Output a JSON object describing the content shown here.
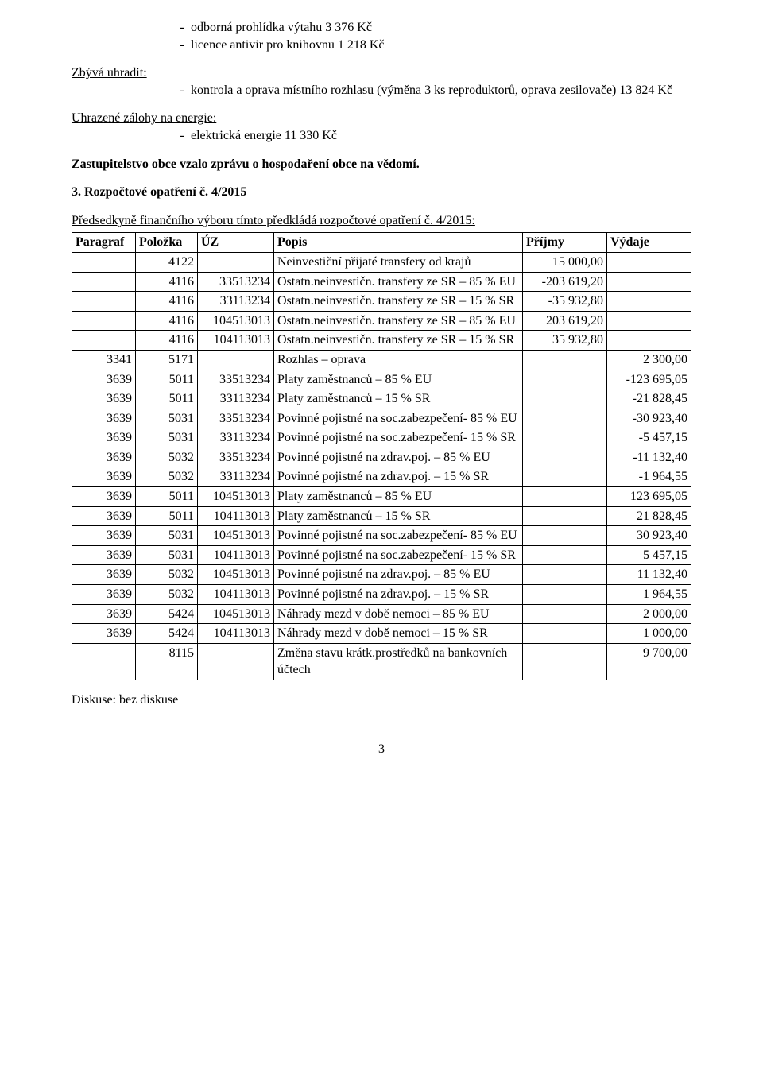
{
  "intro_bullets": [
    "odborná prohlídka výtahu 3 376 Kč",
    "licence antivir pro knihovnu 1 218 Kč"
  ],
  "zbyva_label": "Zbývá uhradit:",
  "zbyva_bullets": [
    "kontrola a oprava místního rozhlasu (výměna 3 ks reproduktorů, oprava zesilovače) 13 824 Kč"
  ],
  "uhrazene_label": "Uhrazené zálohy na energie:",
  "uhrazene_bullets": [
    "elektrická energie 11 330 Kč"
  ],
  "zastup_line": "Zastupitelstvo obce vzalo zprávu o hospodaření obce na vědomí.",
  "section3_title": "3. Rozpočtové opatření č. 4/2015",
  "pred_line": "Předsedkyně finančního výboru tímto předkládá rozpočtové opatření č. 4/2015:",
  "headers": {
    "c1": "Paragraf",
    "c2": "Položka",
    "c3": "ÚZ",
    "c4": "Popis",
    "c5": "Příjmy",
    "c6": "Výdaje"
  },
  "rows": [
    {
      "c1": "",
      "c2": "4122",
      "c3": "",
      "c4": "Neinvestiční přijaté transfery od krajů",
      "c5": "15 000,00",
      "c6": ""
    },
    {
      "c1": "",
      "c2": "4116",
      "c3": "33513234",
      "c4": "Ostatn.neinvestičn. transfery ze SR – 85 % EU",
      "c5": "-203 619,20",
      "c6": ""
    },
    {
      "c1": "",
      "c2": "4116",
      "c3": "33113234",
      "c4": "Ostatn.neinvestičn. transfery ze SR – 15 % SR",
      "c5": "-35 932,80",
      "c6": ""
    },
    {
      "c1": "",
      "c2": "4116",
      "c3": "104513013",
      "c4": "Ostatn.neinvestičn. transfery ze SR – 85 % EU",
      "c5": "203 619,20",
      "c6": ""
    },
    {
      "c1": "",
      "c2": "4116",
      "c3": "104113013",
      "c4": "Ostatn.neinvestičn. transfery ze SR – 15 % SR",
      "c5": "35 932,80",
      "c6": ""
    },
    {
      "c1": "3341",
      "c2": "5171",
      "c3": "",
      "c4": "Rozhlas – oprava",
      "c5": "",
      "c6": "2 300,00"
    },
    {
      "c1": "3639",
      "c2": "5011",
      "c3": "33513234",
      "c4": "Platy zaměstnanců – 85 % EU",
      "c5": "",
      "c6": "-123 695,05"
    },
    {
      "c1": "3639",
      "c2": "5011",
      "c3": "33113234",
      "c4": "Platy zaměstnanců – 15 % SR",
      "c5": "",
      "c6": "-21 828,45"
    },
    {
      "c1": "3639",
      "c2": "5031",
      "c3": "33513234",
      "c4": "Povinné pojistné na soc.zabezpečení- 85 % EU",
      "c5": "",
      "c6": "-30 923,40"
    },
    {
      "c1": "3639",
      "c2": "5031",
      "c3": "33113234",
      "c4": "Povinné pojistné na soc.zabezpečení- 15 % SR",
      "c5": "",
      "c6": "-5 457,15"
    },
    {
      "c1": "3639",
      "c2": "5032",
      "c3": "33513234",
      "c4": "Povinné pojistné na zdrav.poj. – 85 % EU",
      "c5": "",
      "c6": "-11 132,40"
    },
    {
      "c1": "3639",
      "c2": "5032",
      "c3": "33113234",
      "c4": "Povinné pojistné na zdrav.poj. – 15 % SR",
      "c5": "",
      "c6": "-1 964,55"
    },
    {
      "c1": "3639",
      "c2": "5011",
      "c3": "104513013",
      "c4": "Platy zaměstnanců – 85 % EU",
      "c5": "",
      "c6": "123 695,05"
    },
    {
      "c1": "3639",
      "c2": "5011",
      "c3": "104113013",
      "c4": "Platy zaměstnanců – 15 % SR",
      "c5": "",
      "c6": "21 828,45"
    },
    {
      "c1": "3639",
      "c2": "5031",
      "c3": "104513013",
      "c4": "Povinné pojistné na soc.zabezpečení- 85 % EU",
      "c5": "",
      "c6": "30 923,40"
    },
    {
      "c1": "3639",
      "c2": "5031",
      "c3": "104113013",
      "c4": "Povinné pojistné na soc.zabezpečení- 15 % SR",
      "c5": "",
      "c6": "5 457,15"
    },
    {
      "c1": "3639",
      "c2": "5032",
      "c3": "104513013",
      "c4": "Povinné pojistné na zdrav.poj. – 85 % EU",
      "c5": "",
      "c6": "11 132,40"
    },
    {
      "c1": "3639",
      "c2": "5032",
      "c3": "104113013",
      "c4": "Povinné pojistné na zdrav.poj. – 15 % SR",
      "c5": "",
      "c6": "1 964,55"
    },
    {
      "c1": "3639",
      "c2": "5424",
      "c3": "104513013",
      "c4": "Náhrady mezd v době nemoci – 85 % EU",
      "c5": "",
      "c6": "2 000,00"
    },
    {
      "c1": "3639",
      "c2": "5424",
      "c3": "104113013",
      "c4": "Náhrady mezd v době nemoci – 15 % SR",
      "c5": "",
      "c6": "1 000,00"
    },
    {
      "c1": "",
      "c2": "8115",
      "c3": "",
      "c4": "Změna stavu krátk.prostředků na bankovních účtech",
      "c5": "",
      "c6": "9 700,00"
    }
  ],
  "discussion": "Diskuse: bez diskuse",
  "page_number": "3"
}
